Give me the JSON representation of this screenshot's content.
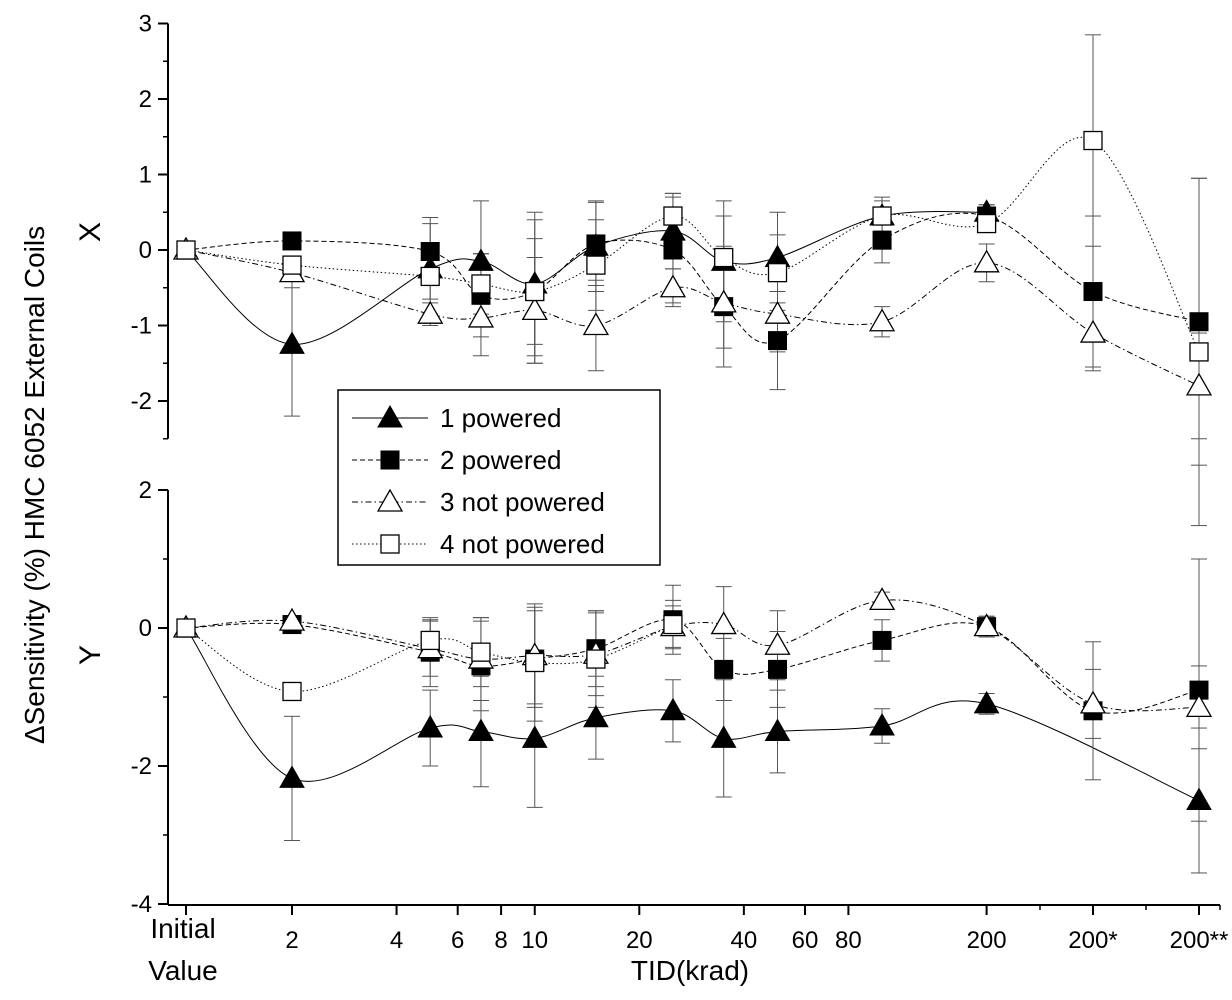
{
  "chart_data": {
    "type": "line",
    "ylabel": "ΔSensitivity (%) HMC 6052 External Coils",
    "xlabel": "TID(krad)",
    "x_tick_labels": [
      {
        "pos": 0,
        "lines": [
          "Initial",
          "Value"
        ]
      },
      {
        "pos": 2,
        "lines": [
          "2"
        ]
      },
      {
        "pos": 4,
        "lines": [
          "4"
        ]
      },
      {
        "pos": 6,
        "lines": [
          "6"
        ]
      },
      {
        "pos": 8,
        "lines": [
          "8"
        ]
      },
      {
        "pos": 10,
        "lines": [
          "10"
        ]
      },
      {
        "pos": 20,
        "lines": [
          "20"
        ]
      },
      {
        "pos": 40,
        "lines": [
          "40"
        ]
      },
      {
        "pos": 60,
        "lines": [
          "60"
        ]
      },
      {
        "pos": 80,
        "lines": [
          "80"
        ]
      },
      {
        "pos": 200,
        "lines": [
          "200"
        ]
      },
      {
        "pos": "200*",
        "lines": [
          "200*"
        ]
      },
      {
        "pos": "200**",
        "lines": [
          "200**"
        ]
      }
    ],
    "x_points": [
      "Initial",
      2,
      5,
      7,
      10,
      15,
      25,
      35,
      50,
      100,
      200,
      "200*",
      "200**"
    ],
    "legend": [
      {
        "name": "1 powered",
        "marker": "triangle-filled",
        "line": "solid"
      },
      {
        "name": "2 powered",
        "marker": "square-filled",
        "line": "dashed"
      },
      {
        "name": "3 not powered",
        "marker": "triangle-open",
        "line": "dashdot"
      },
      {
        "name": "4 not powered",
        "marker": "square-open",
        "line": "dotted"
      }
    ],
    "panels": [
      {
        "label": "X",
        "ylim": [
          -2.5,
          3
        ],
        "yticks": [
          -2,
          -1,
          0,
          1,
          2,
          3
        ],
        "series": [
          {
            "name": "1 powered",
            "values": [
              0,
              -1.25,
              -0.25,
              -0.15,
              -0.45,
              0.05,
              0.25,
              -0.15,
              -0.1,
              0.45,
              0.5,
              null,
              null
            ],
            "errors": [
              0,
              0.95,
              0.6,
              0.8,
              0.95,
              0.6,
              0.5,
              0.8,
              0.6,
              0.25,
              0.1,
              null,
              null
            ]
          },
          {
            "name": "2 powered",
            "values": [
              0,
              0.12,
              -0.02,
              -0.6,
              -0.55,
              0.08,
              0.0,
              -0.75,
              -1.2,
              0.13,
              0.45,
              -0.55,
              -0.95
            ],
            "errors": [
              0,
              0.1,
              0.45,
              0.55,
              0.95,
              0.55,
              0.7,
              0.8,
              0.65,
              0.3,
              0.15,
              1.0,
              1.9
            ]
          },
          {
            "name": "3 not powered",
            "values": [
              0,
              -0.3,
              -0.85,
              -0.9,
              -0.8,
              -1.0,
              -0.5,
              -0.7,
              -0.85,
              -0.95,
              -0.17,
              -1.1,
              -1.8
            ],
            "errors": [
              0,
              0.2,
              0.15,
              0.5,
              0.7,
              0.6,
              0.25,
              0.6,
              0.5,
              0.2,
              0.25,
              0.5,
              0.7
            ]
          },
          {
            "name": "4 not powered",
            "values": [
              0,
              -0.2,
              -0.35,
              -0.45,
              -0.55,
              -0.2,
              0.45,
              -0.1,
              -0.3,
              0.45,
              0.35,
              1.45,
              -1.35
            ],
            "errors": [
              0,
              0.1,
              0.3,
              0.4,
              0.7,
              0.6,
              0.3,
              0.55,
              0.5,
              0.2,
              0.1,
              1.4,
              2.3
            ]
          }
        ]
      },
      {
        "label": "Y",
        "ylim": [
          -4,
          2
        ],
        "yticks": [
          -4,
          -2,
          0,
          2
        ],
        "series": [
          {
            "name": "1 powered",
            "values": [
              0,
              -2.18,
              -1.45,
              -1.5,
              -1.6,
              -1.3,
              -1.2,
              -1.6,
              -1.5,
              -1.42,
              -1.1,
              null,
              -2.5
            ],
            "errors": [
              0,
              0.9,
              0.55,
              0.8,
              1.0,
              0.6,
              0.45,
              0.85,
              0.6,
              0.25,
              0.15,
              null,
              1.05
            ]
          },
          {
            "name": "2 powered",
            "values": [
              0,
              0.05,
              -0.35,
              -0.55,
              -0.45,
              -0.3,
              0.12,
              -0.6,
              -0.6,
              -0.18,
              0.02,
              -1.2,
              -0.9
            ],
            "errors": [
              0,
              0.1,
              0.5,
              0.65,
              0.7,
              0.55,
              0.5,
              0.45,
              0.55,
              0.3,
              0.15,
              1.0,
              1.9
            ]
          },
          {
            "name": "3 not powered",
            "values": [
              0,
              0.1,
              -0.3,
              -0.45,
              -0.4,
              -0.38,
              0.02,
              0.05,
              -0.25,
              0.4,
              0.02,
              -1.1,
              -1.15
            ],
            "errors": [
              0,
              0.05,
              0.4,
              0.6,
              0.7,
              0.6,
              0.3,
              0.55,
              0.5,
              0.12,
              0.15,
              0.5,
              0.6
            ]
          },
          {
            "name": "4 not powered",
            "values": [
              0,
              -0.92,
              -0.18,
              -0.35,
              -0.5,
              -0.45,
              0.05,
              null,
              null,
              null,
              null,
              null,
              null
            ],
            "errors": [
              0,
              0.08,
              0.3,
              0.5,
              0.85,
              0.7,
              0.35,
              null,
              null,
              null,
              null,
              null,
              null
            ]
          }
        ]
      }
    ]
  }
}
